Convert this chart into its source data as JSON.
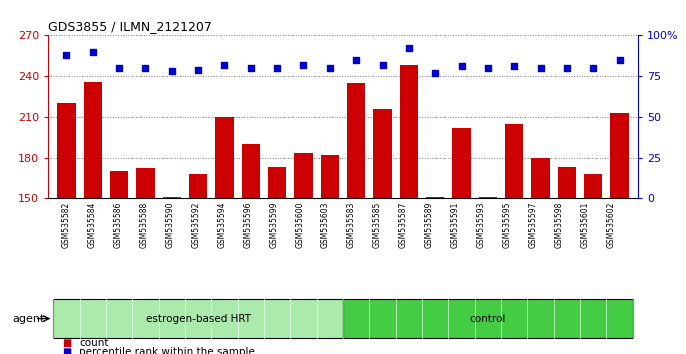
{
  "title": "GDS3855 / ILMN_2121207",
  "samples": [
    "GSM535582",
    "GSM535584",
    "GSM535586",
    "GSM535588",
    "GSM535590",
    "GSM535592",
    "GSM535594",
    "GSM535596",
    "GSM535599",
    "GSM535600",
    "GSM535603",
    "GSM535583",
    "GSM535585",
    "GSM535587",
    "GSM535589",
    "GSM535591",
    "GSM535593",
    "GSM535595",
    "GSM535597",
    "GSM535598",
    "GSM535601",
    "GSM535602"
  ],
  "counts": [
    220,
    236,
    170,
    172,
    151,
    168,
    210,
    190,
    173,
    183,
    182,
    235,
    216,
    248,
    151,
    202,
    151,
    205,
    180,
    173,
    168,
    213
  ],
  "percentile_ranks": [
    88,
    90,
    80,
    80,
    78,
    79,
    82,
    80,
    80,
    82,
    80,
    85,
    82,
    92,
    77,
    81,
    80,
    81,
    80,
    80,
    80,
    85
  ],
  "groups": [
    "estrogen-based HRT",
    "estrogen-based HRT",
    "estrogen-based HRT",
    "estrogen-based HRT",
    "estrogen-based HRT",
    "estrogen-based HRT",
    "estrogen-based HRT",
    "estrogen-based HRT",
    "estrogen-based HRT",
    "estrogen-based HRT",
    "estrogen-based HRT",
    "control",
    "control",
    "control",
    "control",
    "control",
    "control",
    "control",
    "control",
    "control",
    "control",
    "control"
  ],
  "ylim_left": [
    150,
    270
  ],
  "ylim_right": [
    0,
    100
  ],
  "yticks_left": [
    150,
    180,
    210,
    240,
    270
  ],
  "yticks_right": [
    0,
    25,
    50,
    75,
    100
  ],
  "bar_color": "#cc0000",
  "dot_color": "#0000cc",
  "hrt_color_light": "#c8f5c8",
  "hrt_color_dark": "#44cc44",
  "ctrl_color": "#44cc44",
  "hrt_label": "estrogen-based HRT",
  "ctrl_label": "control",
  "n_hrt": 11,
  "n_ctrl": 11,
  "legend_count_label": "count",
  "legend_pct_label": "percentile rank within the sample",
  "agent_label": "agent",
  "left_tick_color": "#cc0000",
  "right_tick_color": "#0000cc"
}
